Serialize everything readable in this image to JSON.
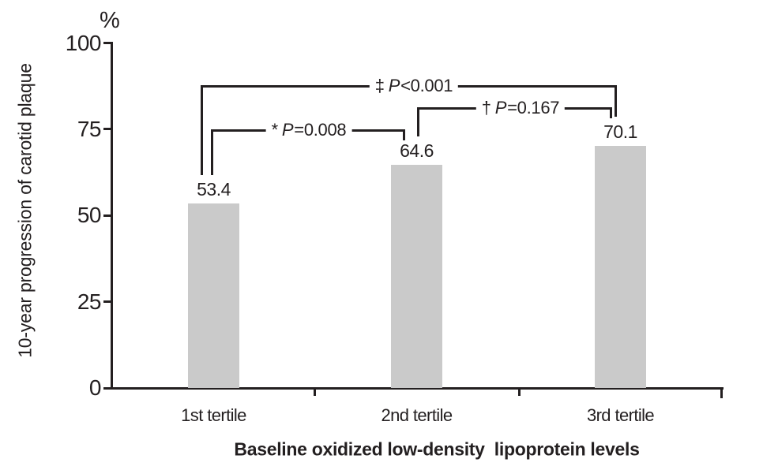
{
  "figure": {
    "background_color": "#ffffff",
    "line_color": "#231f20",
    "bar_color": "#cacaca"
  },
  "chart_data": {
    "type": "bar",
    "title": "",
    "ylabel": "10-year progression of carotid plaque",
    "y_unit_label": "%",
    "xlabel": "Baseline oxidized low-density  lipoprotein levels",
    "categories": [
      "1st tertile",
      "2nd tertile",
      "3rd tertile"
    ],
    "values": [
      53.4,
      64.6,
      70.1
    ],
    "value_labels": [
      "53.4",
      "64.6",
      "70.1"
    ],
    "ylim": [
      0,
      100
    ],
    "yticks": [
      0,
      25,
      50,
      75,
      100
    ],
    "ytick_labels": [
      "0",
      "25",
      "50",
      "75",
      "100"
    ],
    "grid": false,
    "legend_position": "none",
    "significance_brackets": [
      {
        "id": "1st-vs-2nd",
        "between": [
          "1st tertile",
          "2nd tertile"
        ],
        "marker": "*",
        "p_symbol": "P",
        "relation": "=",
        "p_value": "0.008"
      },
      {
        "id": "2nd-vs-3rd",
        "between": [
          "2nd tertile",
          "3rd tertile"
        ],
        "marker": "†",
        "p_symbol": "P",
        "relation": "=",
        "p_value": "0.167"
      },
      {
        "id": "1st-vs-3rd",
        "between": [
          "1st tertile",
          "3rd tertile"
        ],
        "marker": "‡",
        "p_symbol": "P",
        "relation": "<",
        "p_value": "0.001"
      }
    ]
  }
}
